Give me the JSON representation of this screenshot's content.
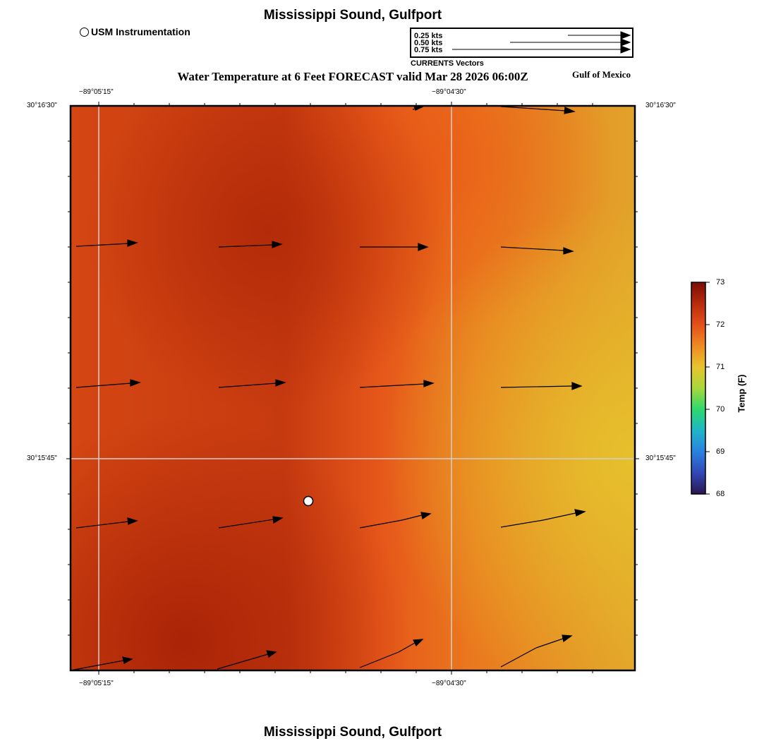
{
  "header": {
    "title": "Mississippi Sound, Gulfport",
    "legend_label": "USM Instrumentation",
    "main_title": "Water Temperature at 6 Feet FORECAST valid Mar 28 2026 06:00Z",
    "region_label": "Gulf of Mexico"
  },
  "vector_key": {
    "entries": [
      "0.25 kts",
      "0.50 kts",
      "0.75 kts"
    ],
    "caption": "CURRENTS Vectors"
  },
  "map": {
    "lon_labels": [
      "−89°05'15\"",
      "−89°04'30\""
    ],
    "lat_labels": [
      "30°16'30\"",
      "30°15'45\""
    ],
    "colors": {
      "warm_dark": "#a82808",
      "warm_mid": "#e25514",
      "warm_light": "#e4bb2c"
    }
  },
  "colorbar": {
    "title": "Temp (F)",
    "ticks": [
      "73",
      "72",
      "71",
      "70",
      "69",
      "68"
    ]
  },
  "footer": {
    "title": "Mississippi Sound, Gulfport"
  }
}
